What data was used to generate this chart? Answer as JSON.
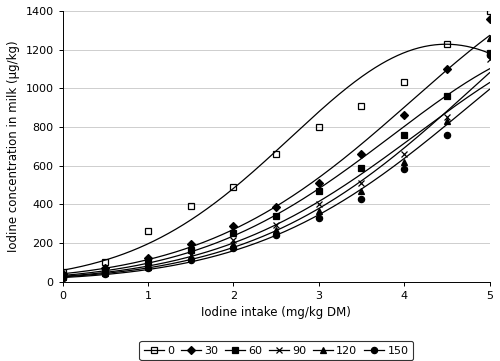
{
  "xlabel": "Iodine intake (mg/kg DM)",
  "ylabel": "Iodine concentration in milk (µg/kg)",
  "xlim": [
    0,
    5
  ],
  "ylim": [
    0,
    1400
  ],
  "xticks": [
    0,
    1,
    2,
    3,
    4,
    5
  ],
  "yticks": [
    0,
    200,
    400,
    600,
    800,
    1000,
    1200,
    1400
  ],
  "series": [
    {
      "label": "0",
      "marker": "s",
      "fillstyle": "none",
      "xv": [
        0,
        0.5,
        1.0,
        1.5,
        2.0,
        2.5,
        3.0,
        3.5,
        4.0,
        4.5,
        5.0
      ],
      "yv": [
        50,
        100,
        260,
        390,
        490,
        660,
        800,
        910,
        1030,
        1230,
        1400
      ]
    },
    {
      "label": "30",
      "marker": "D",
      "fillstyle": "full",
      "xv": [
        0,
        0.5,
        1.0,
        1.5,
        2.0,
        2.5,
        3.0,
        3.5,
        4.0,
        4.5,
        5.0
      ],
      "yv": [
        38,
        68,
        120,
        195,
        285,
        385,
        510,
        660,
        860,
        1100,
        1360
      ]
    },
    {
      "label": "60",
      "marker": "s",
      "fillstyle": "full",
      "xv": [
        0,
        0.5,
        1.0,
        1.5,
        2.0,
        2.5,
        3.0,
        3.5,
        4.0,
        4.5,
        5.0
      ],
      "yv": [
        30,
        55,
        100,
        165,
        250,
        340,
        470,
        590,
        760,
        960,
        1180
      ]
    },
    {
      "label": "90",
      "marker": "x",
      "fillstyle": "full",
      "xv": [
        0,
        0.5,
        1.0,
        1.5,
        2.0,
        2.5,
        3.0,
        3.5,
        4.0,
        4.5,
        5.0
      ],
      "yv": [
        25,
        47,
        85,
        140,
        215,
        295,
        400,
        510,
        660,
        850,
        1150
      ]
    },
    {
      "label": "120",
      "marker": "^",
      "fillstyle": "full",
      "xv": [
        0,
        0.5,
        1.0,
        1.5,
        2.0,
        2.5,
        3.0,
        3.5,
        4.0,
        4.5,
        5.0
      ],
      "yv": [
        22,
        42,
        75,
        125,
        195,
        265,
        365,
        470,
        620,
        830,
        1260
      ]
    },
    {
      "label": "150",
      "marker": "o",
      "fillstyle": "full",
      "xv": [
        0,
        0.5,
        1.0,
        1.5,
        2.0,
        2.5,
        3.0,
        3.5,
        4.0,
        4.5,
        5.0
      ],
      "yv": [
        18,
        38,
        68,
        110,
        175,
        240,
        330,
        425,
        580,
        760,
        1170
      ]
    }
  ],
  "background_color": "#ffffff",
  "figsize": [
    5.0,
    3.61
  ],
  "dpi": 100
}
